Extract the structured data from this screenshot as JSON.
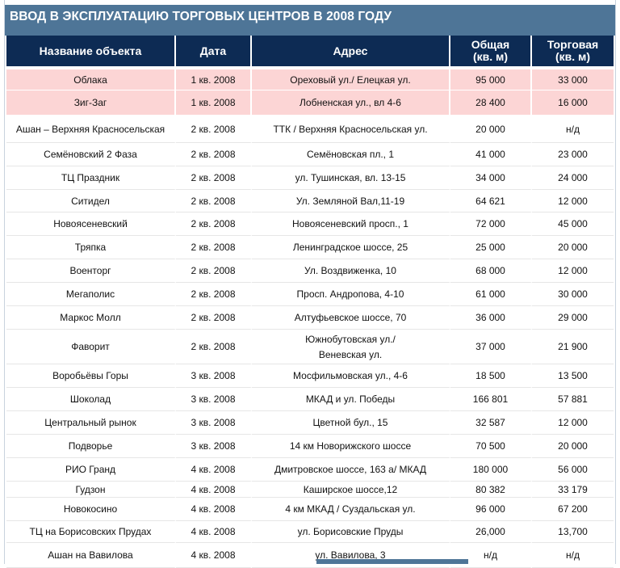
{
  "title": "ВВОД В ЭКСПЛУАТАЦИЮ ТОРГОВЫХ ЦЕНТРОВ В 2008 ГОДУ",
  "columns": [
    {
      "line1": "Название объекта",
      "line2": ""
    },
    {
      "line1": "Дата",
      "line2": ""
    },
    {
      "line1": "Адрес",
      "line2": ""
    },
    {
      "line1": "Общая",
      "line2": "(кв. м)"
    },
    {
      "line1": "Торговая",
      "line2": "(кв. м)"
    }
  ],
  "rows": [
    {
      "name": "Облака",
      "date": "1 кв. 2008",
      "address": "Ореховый ул./ Елецкая ул.",
      "address2": "",
      "total": "95 000",
      "retail": "33 000",
      "highlight": true
    },
    {
      "name": "Зиг-Заг",
      "date": "1 кв. 2008",
      "address": "Лобненская ул., вл 4-6",
      "address2": "",
      "total": "28 400",
      "retail": "16 000",
      "highlight": true
    },
    {
      "name": "Ашан – Верхняя Красносельская",
      "date": "2 кв. 2008",
      "address": "ТТК / Верхняя Красносельская ул.",
      "address2": "",
      "total": "20 000",
      "retail": "н/д"
    },
    {
      "name": "Семёновский 2 Фаза",
      "date": "2 кв. 2008",
      "address": "Семёновская пл., 1",
      "address2": "",
      "total": "41 000",
      "retail": "23 000"
    },
    {
      "name": "ТЦ Праздник",
      "date": "2 кв. 2008",
      "address": "ул. Тушинская, вл. 13-15",
      "address2": "",
      "total": "34 000",
      "retail": "24 000"
    },
    {
      "name": "Ситидел",
      "date": "2 кв. 2008",
      "address": "Ул. Земляной Вал,11-19",
      "address2": "",
      "total": "64 621",
      "retail": "12 000"
    },
    {
      "name": "Новоясеневский",
      "date": "2 кв. 2008",
      "address": "Новоясеневский просп., 1",
      "address2": "",
      "total": "72 000",
      "retail": "45 000"
    },
    {
      "name": "Тряпка",
      "date": "2 кв. 2008",
      "address": "Ленинградское шоссе, 25",
      "address2": "",
      "total": "25 000",
      "retail": "20 000"
    },
    {
      "name": "Военторг",
      "date": "2 кв. 2008",
      "address": "Ул. Воздвиженка, 10",
      "address2": "",
      "total": "68 000",
      "retail": "12 000"
    },
    {
      "name": "Мегаполис",
      "date": "2 кв. 2008",
      "address": "Просп. Андропова, 4-10",
      "address2": "",
      "total": "61 000",
      "retail": "30 000"
    },
    {
      "name": "Маркос Молл",
      "date": "2 кв. 2008",
      "address": "Алтуфьевское шоссе, 70",
      "address2": "",
      "total": "36 000",
      "retail": "29 000"
    },
    {
      "name": "Фаворит",
      "date": "2 кв. 2008",
      "address": "Южнобутовская ул./",
      "address2": "Веневская ул.",
      "total": "37 000",
      "retail": "21 900"
    },
    {
      "name": "Воробьёвы Горы",
      "date": "3 кв. 2008",
      "address": "Мосфильмовская ул., 4-6",
      "address2": "",
      "total": "18 500",
      "retail": "13 500"
    },
    {
      "name": "Шоколад",
      "date": "3 кв. 2008",
      "address": "МКАД и ул. Победы",
      "address2": "",
      "total": "166 801",
      "retail": "57 881"
    },
    {
      "name": "Центральный рынок",
      "date": "3 кв. 2008",
      "address": "Цветной бул., 15",
      "address2": "",
      "total": "32 587",
      "retail": "12 000"
    },
    {
      "name": "Подворье",
      "date": "3 кв. 2008",
      "address": "14 км Новорижского шоссе",
      "address2": "",
      "total": "70 500",
      "retail": "20 000"
    },
    {
      "name": "РИО Гранд",
      "date": "4 кв. 2008",
      "address": "Дмитровское шоссе, 163 а/ МКАД",
      "address2": "",
      "total": "180 000",
      "retail": "56 000"
    },
    {
      "name": "Гудзон",
      "date": "4 кв. 2008",
      "address": "Каширское шоссе,12",
      "address2": "",
      "total": "80 382",
      "retail": "33 179"
    },
    {
      "name": "Новокосино",
      "date": "4 кв. 2008",
      "address": "4 км МКАД / Суздальская ул.",
      "address2": "",
      "total": "96 000",
      "retail": "67 200"
    },
    {
      "name": "ТЦ на Борисовских Прудах",
      "date": "4 кв. 2008",
      "address": "ул. Борисовские Пруды",
      "address2": "",
      "total": "26,000",
      "retail": "13,700"
    },
    {
      "name": "Ашан на Вавилова",
      "date": "4 кв. 2008",
      "address": "ул. Вавилова, 3",
      "address2": "",
      "total": "н/д",
      "retail": "н/д"
    }
  ],
  "colors": {
    "title_bar": "#4e7597",
    "header_bg": "#0d2b54",
    "highlight_row": "#fcd5d5"
  }
}
